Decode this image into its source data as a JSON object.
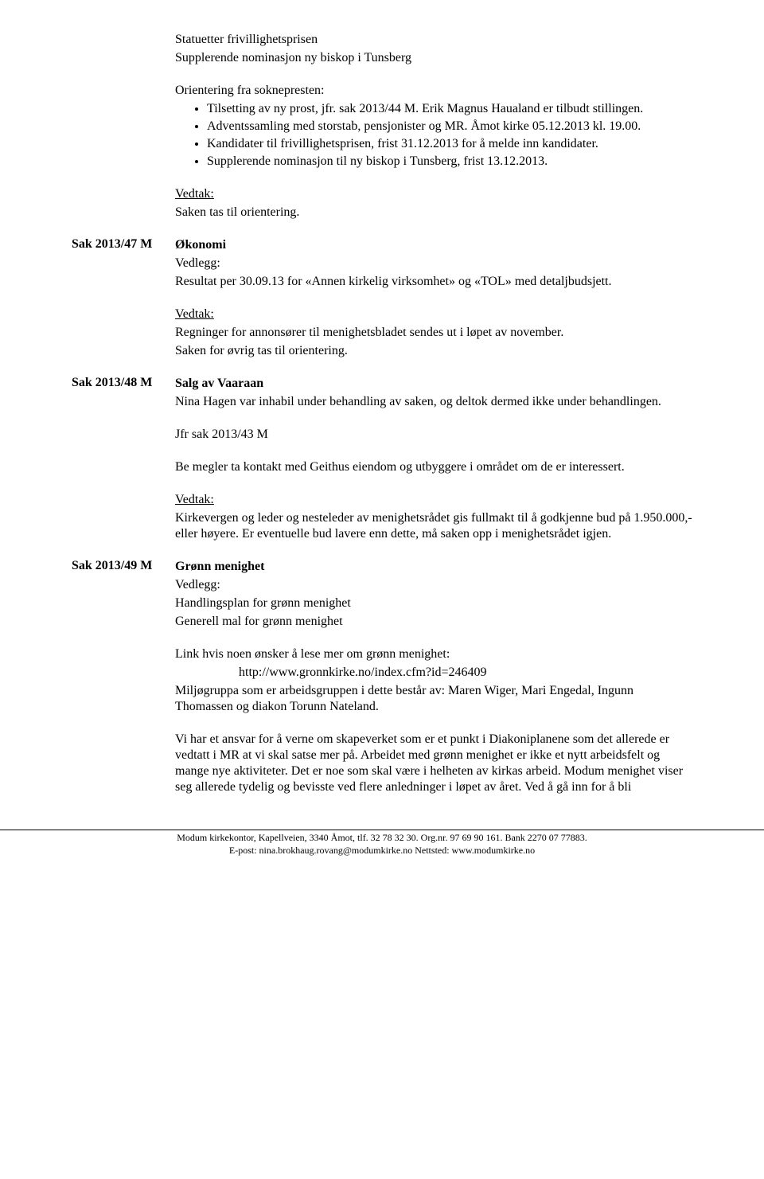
{
  "intro": {
    "line1": "Statuetter frivillighetsprisen",
    "line2": "Supplerende nominasjon ny biskop i Tunsberg",
    "orientering_title": "Orientering fra soknepresten:",
    "bullets": [
      "Tilsetting av ny prost, jfr. sak 2013/44 M. Erik Magnus Haualand er tilbudt stillingen.",
      "Adventssamling med storstab, pensjonister og MR. Åmot kirke 05.12.2013 kl. 19.00.",
      "Kandidater til frivillighetsprisen, frist 31.12.2013 for å melde inn kandidater.",
      "Supplerende nominasjon til ny biskop i Tunsberg, frist 13.12.2013."
    ],
    "vedtak_label": "Vedtak:",
    "vedtak_text": "Saken tas til orientering."
  },
  "sak47": {
    "id": "Sak 2013/47 M",
    "title": "Økonomi",
    "vedlegg_label": "Vedlegg:",
    "vedlegg_text": "Resultat per 30.09.13 for «Annen kirkelig virksomhet» og «TOL» med detaljbudsjett.",
    "vedtak_label": "Vedtak:",
    "vedtak_line1": "Regninger for annonsører til menighetsbladet sendes ut i løpet av november.",
    "vedtak_line2": "Saken for øvrig tas til orientering."
  },
  "sak48": {
    "id": "Sak 2013/48 M",
    "title": "Salg av Vaaraan",
    "intro": "Nina Hagen var inhabil under behandling av saken, og deltok dermed ikke under behandlingen.",
    "jfr": "Jfr sak 2013/43 M",
    "be_megler": "Be megler ta kontakt med Geithus eiendom og utbyggere i området om de er interessert.",
    "vedtak_label": "Vedtak:",
    "vedtak_text": "Kirkevergen og leder og nesteleder av menighetsrådet gis fullmakt til å godkjenne bud på 1.950.000,- eller høyere. Er eventuelle bud lavere enn dette, må saken opp i menighetsrådet igjen."
  },
  "sak49": {
    "id": "Sak 2013/49 M",
    "title": "Grønn menighet",
    "vedlegg_label": "Vedlegg:",
    "vedlegg_line1": "Handlingsplan for grønn menighet",
    "vedlegg_line2": "Generell mal for grønn menighet",
    "link_intro": "Link hvis noen ønsker å lese mer om grønn menighet:",
    "link_url": "http://www.gronnkirke.no/index.cfm?id=246409",
    "miljo": "Miljøgruppa som er arbeidsgruppen i dette består av: Maren Wiger, Mari Engedal, Ingunn Thomassen og diakon Torunn Nateland.",
    "ansvar": "Vi har et ansvar for å verne om skapeverket som er et punkt i Diakoniplanene som det allerede er vedtatt i MR at vi skal satse mer på. Arbeidet med grønn menighet er ikke et nytt arbeidsfelt og mange nye aktiviteter. Det er noe som skal være i helheten av kirkas arbeid. Modum menighet viser seg allerede tydelig og bevisste ved flere anledninger i løpet av året. Ved å gå inn for å bli"
  },
  "footer": {
    "line1": "Modum kirkekontor, Kapellveien, 3340 Åmot, tlf. 32 78 32 30. Org.nr. 97 69 90 161.  Bank 2270 07 77883.",
    "line2": "E-post: nina.brokhaug.rovang@modumkirke.no   Nettsted: www.modumkirke.no"
  }
}
